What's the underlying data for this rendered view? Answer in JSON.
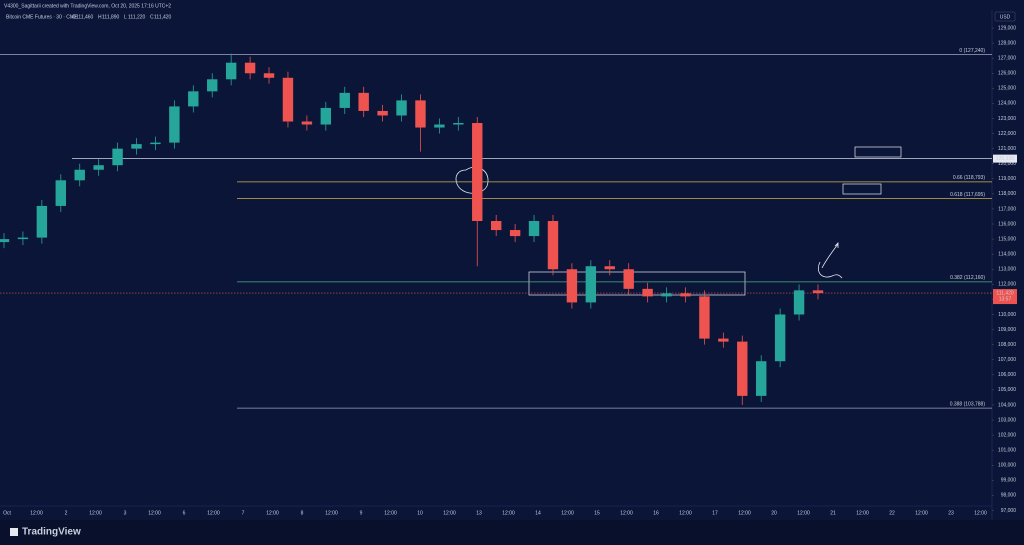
{
  "header": "V4300_Sagittarii created with TradingView.com, Oct 20, 2025 17:16 UTC+2",
  "chart_data": {
    "type": "candlestick",
    "title": "Bitcoin CME Futures · 30 · CME",
    "ohlc_legend": [
      {
        "key": "O",
        "value": "111,460"
      },
      {
        "key": "H",
        "value": "111,890"
      },
      {
        "key": "L",
        "value": "111,220"
      },
      {
        "key": "C",
        "value": "111,420"
      }
    ],
    "currency": "USD",
    "up_color": "#26a69a",
    "down_color": "#ef5350",
    "open": [
      114800,
      115000,
      115100,
      117200,
      118900,
      119600,
      119900,
      121000,
      121300,
      121400,
      123800,
      124800,
      125600,
      126700,
      126000,
      125700,
      122800,
      122600,
      123700,
      124700,
      123500,
      123200,
      124200,
      122400,
      122600,
      122700,
      116200,
      115600,
      115200,
      116200,
      113000,
      110800,
      113200,
      113000,
      111700,
      111200,
      111400,
      111200,
      108400,
      108200,
      104600,
      106900,
      110000,
      111600
    ],
    "high": [
      115400,
      115500,
      117600,
      119300,
      120000,
      120300,
      121400,
      121700,
      121800,
      124200,
      125200,
      126000,
      127300,
      127100,
      126400,
      126100,
      123200,
      124100,
      125100,
      125100,
      123900,
      124600,
      124600,
      123000,
      123100,
      123100,
      116600,
      116000,
      116600,
      116600,
      113400,
      113600,
      113600,
      113400,
      112100,
      111800,
      111800,
      111600,
      108800,
      108600,
      107300,
      110400,
      112000,
      112000
    ],
    "low": [
      114400,
      114600,
      114700,
      116800,
      118500,
      119200,
      119500,
      120600,
      120900,
      121000,
      123400,
      124400,
      125200,
      125600,
      125300,
      122400,
      122200,
      122200,
      123300,
      123100,
      122800,
      122800,
      120800,
      122000,
      122200,
      113200,
      115200,
      114800,
      114800,
      112600,
      110400,
      110400,
      112600,
      111300,
      110800,
      110800,
      110800,
      108000,
      107800,
      104000,
      104200,
      106500,
      109600,
      111000
    ],
    "close": [
      115000,
      115100,
      117200,
      118900,
      119600,
      119900,
      121000,
      121300,
      121400,
      123800,
      124800,
      125600,
      126700,
      126000,
      125700,
      122800,
      122600,
      123700,
      124700,
      123500,
      123200,
      124200,
      122400,
      122600,
      122700,
      116200,
      115600,
      115200,
      116200,
      113000,
      110800,
      113200,
      113000,
      111700,
      111200,
      111400,
      111200,
      108400,
      108200,
      104600,
      106900,
      110000,
      111600,
      111420
    ],
    "time_labels": [
      "Oct",
      "12:00",
      "2",
      "12:00",
      "3",
      "12:00",
      "6",
      "12:00",
      "7",
      "12:00",
      "8",
      "12:00",
      "9",
      "12:00",
      "10",
      "12:00",
      "13",
      "12:00",
      "14",
      "12:00",
      "15",
      "12:00",
      "16",
      "12:00",
      "17",
      "12:00",
      "20",
      "12:00",
      "21",
      "12:00",
      "22",
      "12:00",
      "23",
      "12:00"
    ],
    "ylim": [
      96500,
      129400
    ],
    "yticks": [
      {
        "value": 97000,
        "label": "97,000"
      },
      {
        "value": 98000,
        "label": "98,000"
      },
      {
        "value": 99000,
        "label": "99,000"
      },
      {
        "value": 100000,
        "label": "100,000"
      },
      {
        "value": 101000,
        "label": "101,000"
      },
      {
        "value": 102000,
        "label": "102,000"
      },
      {
        "value": 103000,
        "label": "103,000"
      },
      {
        "value": 104000,
        "label": "104,000"
      },
      {
        "value": 105000,
        "label": "105,000"
      },
      {
        "value": 106000,
        "label": "106,000"
      },
      {
        "value": 107000,
        "label": "107,000"
      },
      {
        "value": 108000,
        "label": "108,000"
      },
      {
        "value": 109000,
        "label": "109,000"
      },
      {
        "value": 110000,
        "label": "110,000"
      },
      {
        "value": 111000,
        "label": "111,000"
      },
      {
        "value": 112000,
        "label": "112,000"
      },
      {
        "value": 113000,
        "label": "113,000"
      },
      {
        "value": 114000,
        "label": "114,000"
      },
      {
        "value": 115000,
        "label": "115,000"
      },
      {
        "value": 116000,
        "label": "116,000"
      },
      {
        "value": 117000,
        "label": "117,000"
      },
      {
        "value": 118000,
        "label": "118,000"
      },
      {
        "value": 119000,
        "label": "119,000"
      },
      {
        "value": 120000,
        "label": "120,000"
      },
      {
        "value": 121000,
        "label": "121,000"
      },
      {
        "value": 122000,
        "label": "122,000"
      },
      {
        "value": 123000,
        "label": "123,000"
      },
      {
        "value": 124000,
        "label": "124,000"
      },
      {
        "value": 125000,
        "label": "125,000"
      },
      {
        "value": 126000,
        "label": "126,000"
      },
      {
        "value": 127000,
        "label": "127,000"
      },
      {
        "value": 128000,
        "label": "128,000"
      },
      {
        "value": 129000,
        "label": "129,000"
      }
    ],
    "levels": [
      {
        "label": "0 (127,240)",
        "value": 127240,
        "color": "#8a94b0"
      },
      {
        "label": "0.66 (118,793)",
        "value": 118793,
        "color": "#d4b24c"
      },
      {
        "label": "0.618 (117,695)",
        "value": 117695,
        "color": "#d4b24c"
      },
      {
        "label": "0.382 (112,160)",
        "value": 112160,
        "color": "#4caf80"
      },
      {
        "label": "0.388 (103,788)",
        "value": 103788,
        "color": "#9aa3b8"
      }
    ],
    "marked_price": {
      "label": "120,338",
      "value": 120338
    },
    "last_price": {
      "label": "111,420",
      "value": 111420,
      "countdown": "13:57"
    }
  },
  "footer": "TradingView"
}
